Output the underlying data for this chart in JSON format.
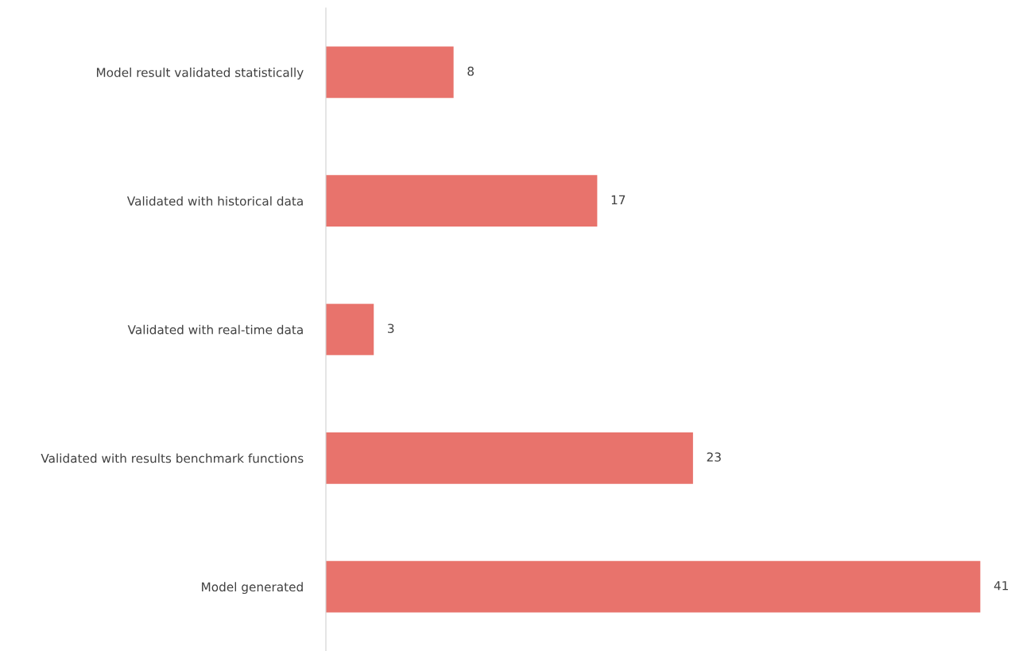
{
  "chart_data": {
    "type": "bar",
    "orientation": "horizontal",
    "categories": [
      "Model result validated statistically",
      "Validated with historical data",
      "Validated with real-time data",
      "Validated with results benchmark functions",
      "Model generated"
    ],
    "values": [
      8,
      17,
      3,
      23,
      41
    ],
    "color": "#e8736c",
    "data_labels": true,
    "grid": false,
    "legend": false
  }
}
